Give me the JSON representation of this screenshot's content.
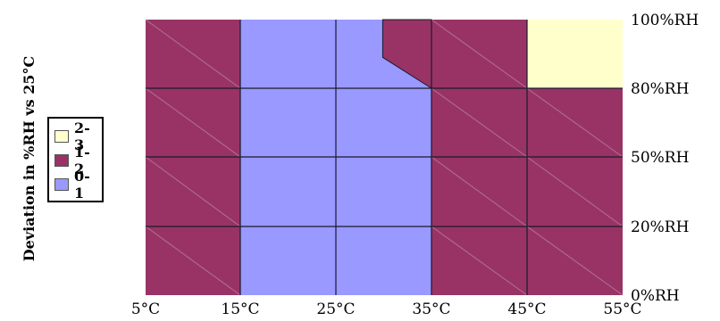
{
  "chart_data": {
    "type": "heatmap",
    "ylabel": "Deviation in %RH vs 25°C",
    "x_ticks": [
      "5°C",
      "15°C",
      "25°C",
      "35°C",
      "45°C",
      "55°C"
    ],
    "y_ticks": [
      "100%RH",
      "80%RH",
      "50%RH",
      "20%RH",
      "0%RH"
    ],
    "x_ranges": [
      [
        "5°C",
        "15°C"
      ],
      [
        "15°C",
        "25°C"
      ],
      [
        "25°C",
        "35°C"
      ],
      [
        "35°C",
        "45°C"
      ],
      [
        "45°C",
        "55°C"
      ]
    ],
    "y_ranges_top_to_bottom": [
      [
        "80%RH",
        "100%RH"
      ],
      [
        "50%RH",
        "80%RH"
      ],
      [
        "20%RH",
        "50%RH"
      ],
      [
        "0%RH",
        "20%RH"
      ]
    ],
    "cells_top_to_bottom": [
      [
        "1-2",
        "0-1",
        "0-1 / 1-2",
        "1-2",
        "2-3"
      ],
      [
        "1-2",
        "0-1",
        "0-1",
        "1-2",
        "1-2"
      ],
      [
        "1-2",
        "0-1",
        "0-1",
        "1-2",
        "1-2"
      ],
      [
        "1-2",
        "0-1",
        "0-1",
        "1-2",
        "1-2"
      ]
    ],
    "legend": [
      {
        "label": "2-3",
        "color": "#ffffcc"
      },
      {
        "label": "1-2",
        "color": "#993366"
      },
      {
        "label": "0-1",
        "color": "#9999ff"
      }
    ]
  }
}
